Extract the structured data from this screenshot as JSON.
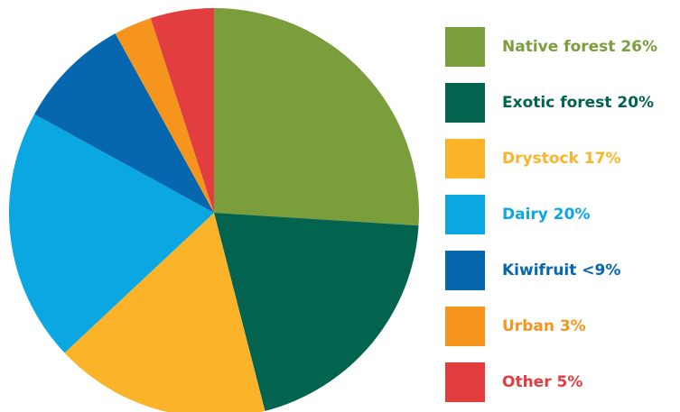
{
  "chart_data": {
    "type": "pie",
    "title": "",
    "slices": [
      {
        "label": "Native forest 26%",
        "value": 26,
        "color": "#7A9E3C"
      },
      {
        "label": "Exotic forest 20%",
        "value": 20,
        "color": "#02634F"
      },
      {
        "label": "Drystock 17%",
        "value": 17,
        "color": "#FBB42A"
      },
      {
        "label": "Dairy 20%",
        "value": 20,
        "color": "#0BA7E2"
      },
      {
        "label": "Kiwifruit <9%",
        "value": 9,
        "color": "#0666AE"
      },
      {
        "label": "Urban 3%",
        "value": 3,
        "color": "#F5951E"
      },
      {
        "label": "Other 5%",
        "value": 5,
        "color": "#E23D3F"
      }
    ],
    "start_angle_deg": 0,
    "direction": "clockwise",
    "legend_position": "right"
  }
}
